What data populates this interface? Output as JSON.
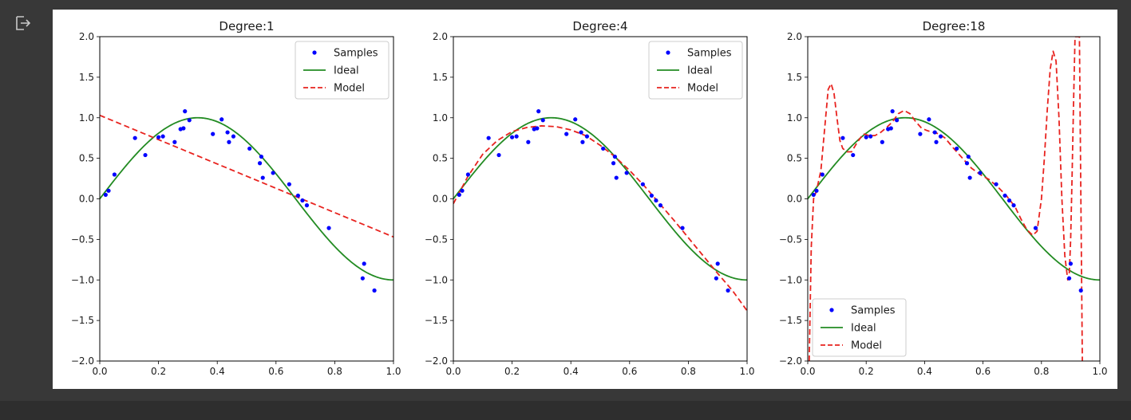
{
  "cell": {
    "output_icon": "output-arrow-icon"
  },
  "chart_data": [
    {
      "type": "line",
      "title": "Degree:1",
      "xlabel": "",
      "ylabel": "",
      "xlim": [
        0.0,
        1.0
      ],
      "ylim": [
        -2.0,
        2.0
      ],
      "xticks": [
        "0.0",
        "0.2",
        "0.4",
        "0.6",
        "0.8",
        "1.0"
      ],
      "yticks": [
        "2.0",
        "1.5",
        "1.0",
        "0.5",
        "0.0",
        "−0.5",
        "−1.0",
        "−1.5",
        "−2.0"
      ],
      "legend": {
        "position": "top-right",
        "entries": [
          "Samples",
          "Ideal",
          "Model"
        ]
      },
      "model_degree": 1
    },
    {
      "type": "line",
      "title": "Degree:4",
      "xlabel": "",
      "ylabel": "",
      "xlim": [
        0.0,
        1.0
      ],
      "ylim": [
        -2.0,
        2.0
      ],
      "xticks": [
        "0.0",
        "0.2",
        "0.4",
        "0.6",
        "0.8",
        "1.0"
      ],
      "yticks": [
        "2.0",
        "1.5",
        "1.0",
        "0.5",
        "0.0",
        "−0.5",
        "−1.0",
        "−1.5",
        "−2.0"
      ],
      "legend": {
        "position": "top-right",
        "entries": [
          "Samples",
          "Ideal",
          "Model"
        ]
      },
      "model_degree": 4
    },
    {
      "type": "line",
      "title": "Degree:18",
      "xlabel": "",
      "ylabel": "",
      "xlim": [
        0.0,
        1.0
      ],
      "ylim": [
        -2.0,
        2.0
      ],
      "xticks": [
        "0.0",
        "0.2",
        "0.4",
        "0.6",
        "0.8",
        "1.0"
      ],
      "yticks": [
        "2.0",
        "1.5",
        "1.0",
        "0.5",
        "0.0",
        "−0.5",
        "−1.0",
        "−1.5",
        "−2.0"
      ],
      "legend": {
        "position": "bottom-left",
        "entries": [
          "Samples",
          "Ideal",
          "Model"
        ]
      },
      "model_degree": 18
    }
  ],
  "samples": {
    "x": [
      0.02,
      0.03,
      0.05,
      0.12,
      0.155,
      0.2,
      0.215,
      0.255,
      0.275,
      0.285,
      0.29,
      0.305,
      0.385,
      0.415,
      0.435,
      0.44,
      0.455,
      0.51,
      0.545,
      0.55,
      0.555,
      0.59,
      0.645,
      0.675,
      0.69,
      0.705,
      0.78,
      0.895,
      0.9,
      0.935
    ],
    "y": [
      0.05,
      0.1,
      0.3,
      0.75,
      0.54,
      0.76,
      0.77,
      0.7,
      0.86,
      0.87,
      1.08,
      0.97,
      0.8,
      0.98,
      0.82,
      0.7,
      0.77,
      0.62,
      0.44,
      0.52,
      0.26,
      0.32,
      0.18,
      0.04,
      -0.02,
      -0.08,
      -0.36,
      -0.98,
      -0.8,
      -1.13
    ]
  },
  "ideal": {
    "label": "Ideal",
    "formula": "sin(1.5*pi*x)",
    "x_range": [
      0.0,
      1.0
    ],
    "color": "#228b22"
  },
  "models": {
    "degree_1": {
      "x": [
        0.0,
        1.0
      ],
      "y": [
        1.03,
        -0.47
      ]
    },
    "degree_4": {
      "x": [
        0.0,
        0.05,
        0.1,
        0.15,
        0.2,
        0.25,
        0.3,
        0.35,
        0.4,
        0.45,
        0.5,
        0.55,
        0.6,
        0.65,
        0.7,
        0.75,
        0.8,
        0.85,
        0.9,
        0.95,
        1.0
      ],
      "y": [
        -0.06,
        0.28,
        0.55,
        0.72,
        0.83,
        0.88,
        0.9,
        0.89,
        0.85,
        0.78,
        0.66,
        0.52,
        0.35,
        0.16,
        -0.05,
        -0.26,
        -0.48,
        -0.7,
        -0.92,
        -1.13,
        -1.38
      ]
    },
    "degree_18": {
      "x": [
        0.005,
        0.012,
        0.02,
        0.03,
        0.045,
        0.06,
        0.07,
        0.08,
        0.09,
        0.1,
        0.11,
        0.12,
        0.135,
        0.15,
        0.17,
        0.19,
        0.21,
        0.23,
        0.25,
        0.27,
        0.29,
        0.31,
        0.33,
        0.35,
        0.37,
        0.39,
        0.41,
        0.43,
        0.45,
        0.47,
        0.5,
        0.53,
        0.56,
        0.59,
        0.62,
        0.65,
        0.68,
        0.71,
        0.73,
        0.75,
        0.77,
        0.785,
        0.8,
        0.81,
        0.82,
        0.83,
        0.84,
        0.85,
        0.86,
        0.87,
        0.88,
        0.89,
        0.895,
        0.9,
        0.905,
        0.91,
        0.915,
        0.918,
        0.92,
        0.925,
        0.93,
        0.935,
        0.94
      ],
      "y": [
        -2.0,
        -0.6,
        0.0,
        0.1,
        0.35,
        0.95,
        1.35,
        1.42,
        1.3,
        1.0,
        0.72,
        0.62,
        0.58,
        0.58,
        0.7,
        0.8,
        0.78,
        0.78,
        0.82,
        0.88,
        0.95,
        1.05,
        1.09,
        1.05,
        0.95,
        0.87,
        0.84,
        0.82,
        0.8,
        0.75,
        0.62,
        0.5,
        0.38,
        0.3,
        0.24,
        0.15,
        0.04,
        -0.1,
        -0.25,
        -0.38,
        -0.45,
        -0.4,
        0.0,
        0.5,
        1.1,
        1.6,
        1.82,
        1.7,
        1.0,
        0.0,
        -0.7,
        -1.0,
        -0.95,
        -0.5,
        0.3,
        1.2,
        2.0,
        2.0,
        2.0,
        2.0,
        2.0,
        0.0,
        -2.0
      ]
    },
    "label": "Model",
    "color": "#e8231f"
  },
  "sample_style": {
    "label": "Samples",
    "color": "#0000ff"
  }
}
